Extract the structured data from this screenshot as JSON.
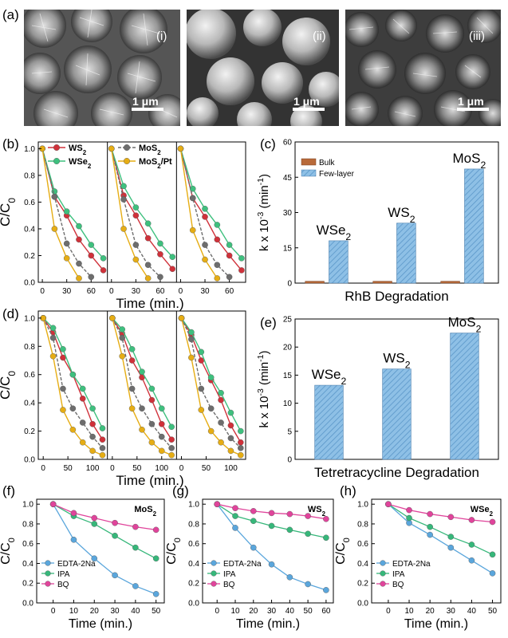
{
  "panel_letters": [
    "(a)",
    "(b)",
    "(c)",
    "(d)",
    "(e)",
    "(f)",
    "(g)",
    "(h)"
  ],
  "sem": {
    "labels": [
      "(i)",
      "(ii)",
      "(iii)"
    ],
    "scale_bar": "1 μm"
  },
  "colors": {
    "WS2": "#d0313a",
    "WSe2": "#3ec07e",
    "MoS2": "#6d6d6d",
    "MoS2_Pt": "#e6ad14",
    "EDTA": "#5aa6dc",
    "IPA": "#36b77a",
    "BQ": "#e0449b",
    "bulk": "#b86a3a",
    "few_layer": "#8ec0e6"
  },
  "chart_data": [
    {
      "id": "b",
      "type": "line",
      "ylabel": "C/C0",
      "xlabel": "Time (min.)",
      "ylim": [
        0,
        1.05
      ],
      "yticks": [
        "0.0",
        "0.2",
        "0.4",
        "0.6",
        "0.8",
        "1.0"
      ],
      "legend": [
        "WS2",
        "WSe2",
        "MoS2",
        "MoS2/Pt"
      ],
      "subplots": [
        {
          "xlim": [
            -5,
            80
          ],
          "xticks": [
            0,
            30,
            60
          ],
          "series": [
            {
              "name": "WS2",
              "x": [
                0,
                15,
                30,
                45,
                60,
                75
              ],
              "y": [
                1.0,
                0.64,
                0.5,
                0.32,
                0.2,
                0.09
              ]
            },
            {
              "name": "WSe2",
              "x": [
                0,
                15,
                30,
                45,
                60,
                75
              ],
              "y": [
                1.0,
                0.68,
                0.53,
                0.42,
                0.28,
                0.18
              ]
            },
            {
              "name": "MoS2",
              "x": [
                0,
                15,
                30,
                45,
                60
              ],
              "y": [
                1.0,
                0.64,
                0.29,
                0.14,
                0.04
              ]
            },
            {
              "name": "MoS2/Pt",
              "x": [
                0,
                15,
                30,
                45
              ],
              "y": [
                1.0,
                0.4,
                0.18,
                0.03
              ]
            }
          ]
        },
        {
          "xlim": [
            -5,
            80
          ],
          "xticks": [
            0,
            30,
            60
          ],
          "series": [
            {
              "name": "WS2",
              "x": [
                0,
                15,
                30,
                45,
                60,
                75
              ],
              "y": [
                1.0,
                0.65,
                0.5,
                0.33,
                0.21,
                0.1
              ]
            },
            {
              "name": "WSe2",
              "x": [
                0,
                15,
                30,
                45,
                60,
                75
              ],
              "y": [
                1.0,
                0.72,
                0.56,
                0.44,
                0.29,
                0.19
              ]
            },
            {
              "name": "MoS2",
              "x": [
                0,
                15,
                30,
                45,
                60
              ],
              "y": [
                1.0,
                0.62,
                0.28,
                0.13,
                0.04
              ]
            },
            {
              "name": "MoS2/Pt",
              "x": [
                0,
                15,
                30,
                45
              ],
              "y": [
                1.0,
                0.4,
                0.17,
                0.03
              ]
            }
          ]
        },
        {
          "xlim": [
            -5,
            80
          ],
          "xticks": [
            0,
            30,
            60
          ],
          "series": [
            {
              "name": "WS2",
              "x": [
                0,
                15,
                30,
                45,
                60,
                75
              ],
              "y": [
                1.0,
                0.63,
                0.49,
                0.32,
                0.2,
                0.09
              ]
            },
            {
              "name": "WSe2",
              "x": [
                0,
                15,
                30,
                45,
                60,
                75
              ],
              "y": [
                1.0,
                0.7,
                0.55,
                0.43,
                0.28,
                0.18
              ]
            },
            {
              "name": "MoS2",
              "x": [
                0,
                15,
                30,
                45,
                60
              ],
              "y": [
                1.0,
                0.63,
                0.28,
                0.13,
                0.04
              ]
            },
            {
              "name": "MoS2/Pt",
              "x": [
                0,
                15,
                30,
                45
              ],
              "y": [
                1.0,
                0.39,
                0.17,
                0.03
              ]
            }
          ]
        }
      ]
    },
    {
      "id": "c",
      "type": "bar",
      "ylabel": "k x 10-3 (min-1)",
      "xlabel": "RhB Degradation",
      "ylim": [
        0,
        60
      ],
      "yticks": [
        0,
        15,
        30,
        45,
        60
      ],
      "categories": [
        "WSe2",
        "WS2",
        "MoS2"
      ],
      "series": [
        {
          "name": "Bulk",
          "values": [
            0.8,
            0.8,
            0.8
          ]
        },
        {
          "name": "Few-layer",
          "values": [
            18,
            25.5,
            48.5
          ]
        }
      ]
    },
    {
      "id": "d",
      "type": "line",
      "ylabel": "C/C0",
      "xlabel": "Time (min.)",
      "ylim": [
        0,
        1.05
      ],
      "yticks": [
        "0.0",
        "0.2",
        "0.4",
        "0.6",
        "0.8",
        "1.0"
      ],
      "subplots": [
        {
          "xlim": [
            -10,
            130
          ],
          "xticks": [
            0,
            50,
            100
          ],
          "series": [
            {
              "name": "WS2",
              "x": [
                0,
                20,
                40,
                60,
                80,
                100,
                120
              ],
              "y": [
                1.0,
                0.9,
                0.72,
                0.6,
                0.43,
                0.25,
                0.14
              ]
            },
            {
              "name": "WSe2",
              "x": [
                0,
                20,
                40,
                60,
                80,
                100,
                120
              ],
              "y": [
                1.0,
                0.93,
                0.78,
                0.6,
                0.5,
                0.36,
                0.22
              ]
            },
            {
              "name": "MoS2",
              "x": [
                0,
                20,
                40,
                60,
                80,
                100,
                120
              ],
              "y": [
                1.0,
                0.86,
                0.5,
                0.36,
                0.26,
                0.16,
                0.08
              ]
            },
            {
              "name": "MoS2/Pt",
              "x": [
                0,
                20,
                40,
                60,
                80,
                100,
                120
              ],
              "y": [
                1.0,
                0.73,
                0.35,
                0.21,
                0.12,
                0.06,
                0.03
              ]
            }
          ]
        },
        {
          "xlim": [
            -10,
            130
          ],
          "xticks": [
            0,
            50,
            100
          ],
          "series": [
            {
              "name": "WS2",
              "x": [
                0,
                20,
                40,
                60,
                80,
                100,
                120
              ],
              "y": [
                1.0,
                0.89,
                0.7,
                0.58,
                0.42,
                0.25,
                0.14
              ]
            },
            {
              "name": "WSe2",
              "x": [
                0,
                20,
                40,
                60,
                80,
                100,
                120
              ],
              "y": [
                1.0,
                0.92,
                0.78,
                0.62,
                0.5,
                0.36,
                0.23
              ]
            },
            {
              "name": "MoS2",
              "x": [
                0,
                20,
                40,
                60,
                80,
                100,
                120
              ],
              "y": [
                1.0,
                0.86,
                0.5,
                0.36,
                0.25,
                0.16,
                0.08
              ]
            },
            {
              "name": "MoS2/Pt",
              "x": [
                0,
                20,
                40,
                60,
                80,
                100,
                120
              ],
              "y": [
                1.0,
                0.73,
                0.36,
                0.21,
                0.12,
                0.06,
                0.03
              ]
            }
          ]
        },
        {
          "xlim": [
            -10,
            130
          ],
          "xticks": [
            0,
            50,
            100
          ],
          "series": [
            {
              "name": "WS2",
              "x": [
                0,
                20,
                40,
                60,
                80,
                100,
                120
              ],
              "y": [
                1.0,
                0.88,
                0.7,
                0.56,
                0.42,
                0.24,
                0.12
              ]
            },
            {
              "name": "WSe2",
              "x": [
                0,
                20,
                40,
                60,
                80,
                100,
                120
              ],
              "y": [
                1.0,
                0.9,
                0.76,
                0.58,
                0.47,
                0.33,
                0.2
              ]
            },
            {
              "name": "MoS2",
              "x": [
                0,
                20,
                40,
                60,
                80,
                100,
                120
              ],
              "y": [
                1.0,
                0.85,
                0.5,
                0.36,
                0.26,
                0.15,
                0.08
              ]
            },
            {
              "name": "MoS2/Pt",
              "x": [
                0,
                20,
                40,
                60,
                80,
                100,
                120
              ],
              "y": [
                1.0,
                0.72,
                0.35,
                0.2,
                0.12,
                0.06,
                0.03
              ]
            }
          ]
        }
      ]
    },
    {
      "id": "e",
      "type": "bar",
      "ylabel": "k x 10-3 (min-1)",
      "xlabel": "Tetretracycline Degradation",
      "ylim": [
        0,
        25
      ],
      "yticks": [
        0,
        5,
        10,
        15,
        20,
        25
      ],
      "categories": [
        "WSe2",
        "WS2",
        "MoS2"
      ],
      "values": [
        13.2,
        16.1,
        22.5
      ]
    },
    {
      "id": "f",
      "type": "line",
      "title": "MoS2",
      "ylabel": "C/C0",
      "xlabel": "Time (min.)",
      "xlim": [
        -8,
        54
      ],
      "xticks": [
        0,
        10,
        20,
        30,
        40,
        50
      ],
      "ylim": [
        0,
        1.05
      ],
      "yticks": [
        "0.0",
        "0.2",
        "0.4",
        "0.6",
        "0.8",
        "1.0"
      ],
      "series": [
        {
          "name": "EDTA-2Na",
          "x": [
            0,
            10,
            20,
            30,
            40,
            50
          ],
          "y": [
            1.0,
            0.64,
            0.45,
            0.28,
            0.17,
            0.09
          ]
        },
        {
          "name": "IPA",
          "x": [
            0,
            10,
            20,
            30,
            40,
            50
          ],
          "y": [
            1.0,
            0.88,
            0.8,
            0.68,
            0.56,
            0.45
          ]
        },
        {
          "name": "BQ",
          "x": [
            0,
            10,
            20,
            30,
            40,
            50
          ],
          "y": [
            1.0,
            0.91,
            0.86,
            0.81,
            0.77,
            0.74
          ]
        }
      ]
    },
    {
      "id": "g",
      "type": "line",
      "title": "WS2",
      "ylabel": "C/C0",
      "xlabel": "Time (min.)",
      "xlim": [
        -8,
        64
      ],
      "xticks": [
        0,
        10,
        20,
        30,
        40,
        50,
        60
      ],
      "ylim": [
        0,
        1.05
      ],
      "yticks": [
        "0.0",
        "0.2",
        "0.4",
        "0.6",
        "0.8",
        "1.0"
      ],
      "series": [
        {
          "name": "EDTA-2Na",
          "x": [
            0,
            10,
            20,
            30,
            40,
            50,
            60
          ],
          "y": [
            1.0,
            0.76,
            0.56,
            0.39,
            0.26,
            0.19,
            0.13
          ]
        },
        {
          "name": "IPA",
          "x": [
            0,
            10,
            20,
            30,
            40,
            50,
            60
          ],
          "y": [
            1.0,
            0.88,
            0.83,
            0.78,
            0.74,
            0.7,
            0.66
          ]
        },
        {
          "name": "BQ",
          "x": [
            0,
            10,
            20,
            30,
            40,
            50,
            60
          ],
          "y": [
            1.0,
            0.96,
            0.93,
            0.91,
            0.9,
            0.88,
            0.85
          ]
        }
      ]
    },
    {
      "id": "h",
      "type": "line",
      "title": "WSe2",
      "ylabel": "C/C0",
      "xlabel": "Time (min.)",
      "xlim": [
        -8,
        54
      ],
      "xticks": [
        0,
        10,
        20,
        30,
        40,
        50
      ],
      "ylim": [
        0,
        1.05
      ],
      "yticks": [
        "0.0",
        "0.2",
        "0.4",
        "0.6",
        "0.8",
        "1.0"
      ],
      "series": [
        {
          "name": "EDTA-2Na",
          "x": [
            0,
            10,
            20,
            30,
            40,
            50
          ],
          "y": [
            1.0,
            0.81,
            0.69,
            0.56,
            0.43,
            0.3
          ]
        },
        {
          "name": "IPA",
          "x": [
            0,
            10,
            20,
            30,
            40,
            50
          ],
          "y": [
            1.0,
            0.86,
            0.77,
            0.67,
            0.59,
            0.49
          ]
        },
        {
          "name": "BQ",
          "x": [
            0,
            10,
            20,
            30,
            40,
            50
          ],
          "y": [
            1.0,
            0.94,
            0.9,
            0.87,
            0.84,
            0.82
          ]
        }
      ]
    }
  ]
}
